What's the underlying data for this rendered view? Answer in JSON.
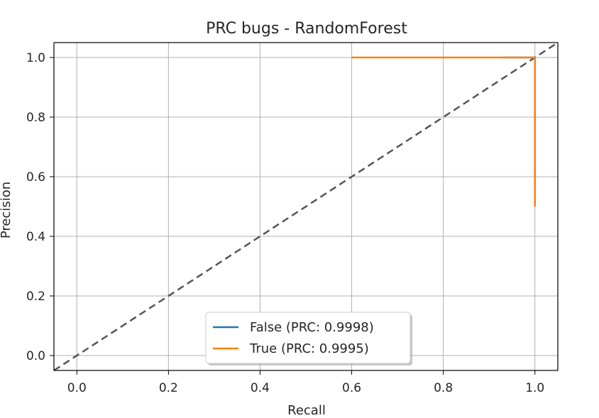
{
  "chart_data": {
    "type": "line",
    "title": "PRC bugs - RandomForest",
    "xlabel": "Recall",
    "ylabel": "Precision",
    "xlim": [
      -0.05,
      1.05
    ],
    "ylim": [
      -0.05,
      1.05
    ],
    "xticks": [
      0.0,
      0.2,
      0.4,
      0.6,
      0.8,
      1.0
    ],
    "xtick_labels": [
      "0.0",
      "0.2",
      "0.4",
      "0.6",
      "0.8",
      "1.0"
    ],
    "yticks": [
      0.0,
      0.2,
      0.4,
      0.6,
      0.8,
      1.0
    ],
    "ytick_labels": [
      "0.0",
      "0.2",
      "0.4",
      "0.6",
      "0.8",
      "1.0"
    ],
    "grid": true,
    "legend_position": "lower-center",
    "series": [
      {
        "name": "False (PRC: 0.9998)",
        "color": "#1f77b4",
        "x": [
          0.93,
          0.97,
          1.0,
          1.0
        ],
        "y": [
          1.0,
          1.0,
          1.0,
          0.5
        ]
      },
      {
        "name": "True (PRC: 0.9995)",
        "color": "#ff7f0e",
        "x": [
          0.6,
          0.8,
          0.95,
          1.0,
          1.0
        ],
        "y": [
          1.0,
          1.0,
          1.0,
          1.0,
          0.5
        ]
      }
    ],
    "reference_line": {
      "x": [
        -0.05,
        1.05
      ],
      "y": [
        -0.05,
        1.05
      ],
      "style": "dashed",
      "color": "#555555"
    }
  }
}
